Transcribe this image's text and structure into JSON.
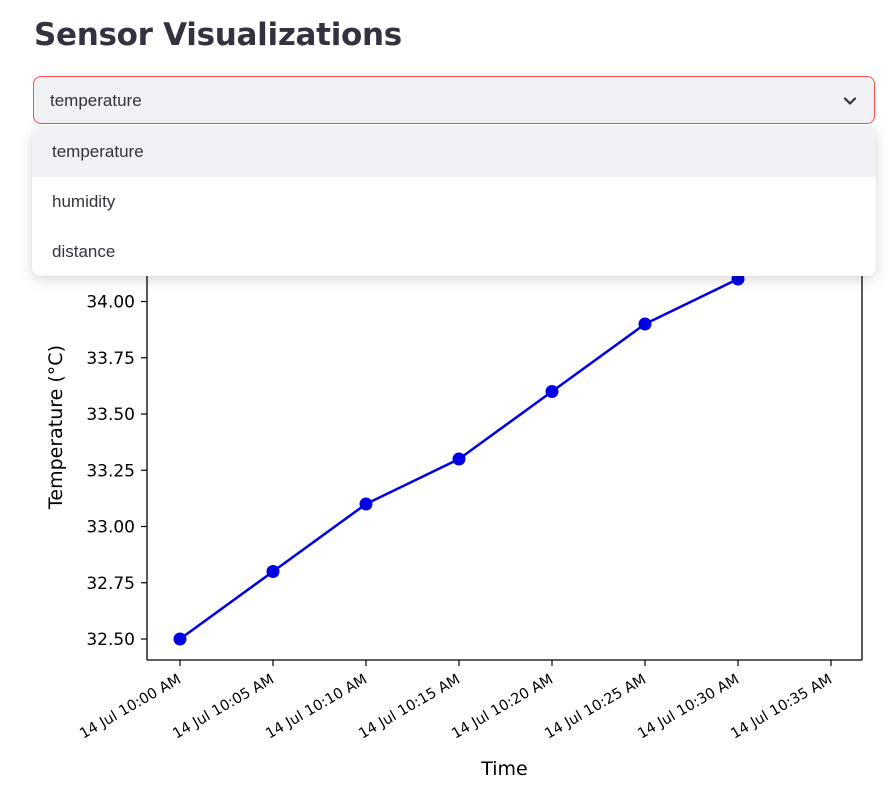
{
  "page": {
    "title": "Sensor Visualizations"
  },
  "sensor_select": {
    "value": "temperature",
    "icon": "chevron-down-icon",
    "options": [
      {
        "label": "temperature",
        "highlighted": true
      },
      {
        "label": "humidity",
        "highlighted": false
      },
      {
        "label": "distance",
        "highlighted": false
      }
    ]
  },
  "colors": {
    "accent_border": "#ff4b4b",
    "select_bg": "#f0f2f6",
    "series_line": "#0000e6"
  },
  "chart_data": {
    "type": "line",
    "title": "",
    "xlabel": "Time",
    "ylabel": "Temperature (°C)",
    "x": [
      "14 Jul 10:00 AM",
      "14 Jul 10:05 AM",
      "14 Jul 10:10 AM",
      "14 Jul 10:15 AM",
      "14 Jul 10:20 AM",
      "14 Jul 10:25 AM",
      "14 Jul 10:30 AM"
    ],
    "x_ticks": [
      "14 Jul 10:00 AM",
      "14 Jul 10:05 AM",
      "14 Jul 10:10 AM",
      "14 Jul 10:15 AM",
      "14 Jul 10:20 AM",
      "14 Jul 10:25 AM",
      "14 Jul 10:30 AM",
      "14 Jul 10:35 AM"
    ],
    "y_ticks": [
      "32.50",
      "32.75",
      "33.00",
      "33.25",
      "33.50",
      "33.75",
      "34.00"
    ],
    "series": [
      {
        "values": [
          32.5,
          32.8,
          33.1,
          33.3,
          33.6,
          33.9,
          34.1
        ]
      }
    ],
    "grid": false,
    "legend": false
  }
}
